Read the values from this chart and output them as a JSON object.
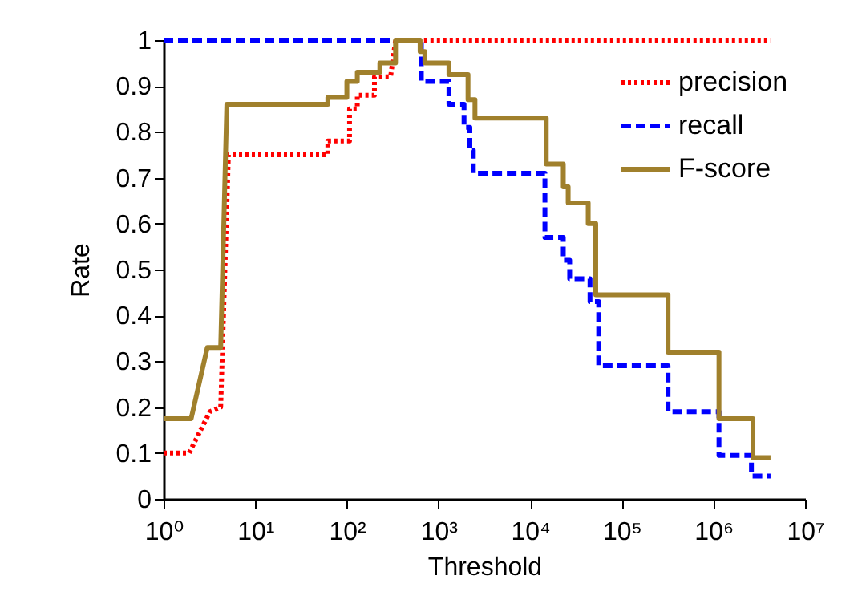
{
  "chart_data": {
    "type": "line",
    "xlabel": "Threshold",
    "ylabel": "Rate",
    "log": "x",
    "grid": false,
    "legend": "top right",
    "marker": "none",
    "xlim": [
      1,
      10000000
    ],
    "ylim": [
      0,
      1
    ],
    "xticks": [
      {
        "value": 1,
        "label": "10⁰"
      },
      {
        "value": 10,
        "label": "10¹"
      },
      {
        "value": 100,
        "label": "10²"
      },
      {
        "value": 1000,
        "label": "10³"
      },
      {
        "value": 10000,
        "label": "10⁴"
      },
      {
        "value": 100000,
        "label": "10⁵"
      },
      {
        "value": 1000000,
        "label": "10⁶"
      },
      {
        "value": 10000000,
        "label": "10⁷"
      }
    ],
    "yticks": [
      0,
      0.1,
      0.2,
      0.3,
      0.4,
      0.5,
      0.6,
      0.7,
      0.8,
      0.9,
      1
    ],
    "series": [
      {
        "name": "precision",
        "color": "#ff0000",
        "line_style": "dotted",
        "x": [
          1,
          1.9,
          3.2,
          4.2,
          5.1,
          62,
          62,
          107,
          107,
          130,
          130,
          200,
          200,
          300,
          340,
          4200000
        ],
        "values": [
          0.1,
          0.1,
          0.19,
          0.2,
          0.75,
          0.75,
          0.78,
          0.78,
          0.85,
          0.85,
          0.88,
          0.88,
          0.92,
          0.92,
          1,
          1
        ]
      },
      {
        "name": "recall",
        "color": "#0000ff",
        "line_style": "dashed",
        "x": [
          1,
          650,
          650,
          1300,
          1300,
          1900,
          1900,
          2200,
          2200,
          2400,
          2400,
          14500,
          14500,
          23000,
          23000,
          27000,
          27000,
          45000,
          45000,
          56000,
          56000,
          320000,
          320000,
          1150000,
          1150000,
          2600000,
          2600000,
          4200000
        ],
        "values": [
          1,
          1,
          0.91,
          0.91,
          0.86,
          0.86,
          0.81,
          0.81,
          0.76,
          0.76,
          0.71,
          0.71,
          0.57,
          0.57,
          0.52,
          0.52,
          0.48,
          0.48,
          0.43,
          0.43,
          0.29,
          0.29,
          0.19,
          0.19,
          0.095,
          0.095,
          0.05,
          0.05
        ]
      },
      {
        "name": "F-score",
        "color": "#a0802c",
        "line_style": "solid",
        "x": [
          1,
          2,
          3,
          4.2,
          4.9,
          62,
          62,
          100,
          100,
          130,
          130,
          229,
          229,
          340,
          340,
          630,
          630,
          710,
          710,
          1300,
          1300,
          2100,
          2100,
          2500,
          2500,
          15000,
          15000,
          23000,
          23000,
          26000,
          26000,
          43000,
          43000,
          52000,
          52000,
          320000,
          320000,
          1150000,
          1150000,
          2700000,
          2700000,
          4200000
        ],
        "values": [
          0.175,
          0.175,
          0.33,
          0.33,
          0.86,
          0.86,
          0.875,
          0.875,
          0.91,
          0.91,
          0.93,
          0.93,
          0.95,
          0.95,
          1,
          1,
          0.975,
          0.975,
          0.95,
          0.95,
          0.925,
          0.925,
          0.87,
          0.87,
          0.83,
          0.83,
          0.73,
          0.73,
          0.68,
          0.68,
          0.645,
          0.645,
          0.6,
          0.6,
          0.445,
          0.445,
          0.32,
          0.32,
          0.175,
          0.175,
          0.09,
          0.09
        ]
      }
    ]
  }
}
